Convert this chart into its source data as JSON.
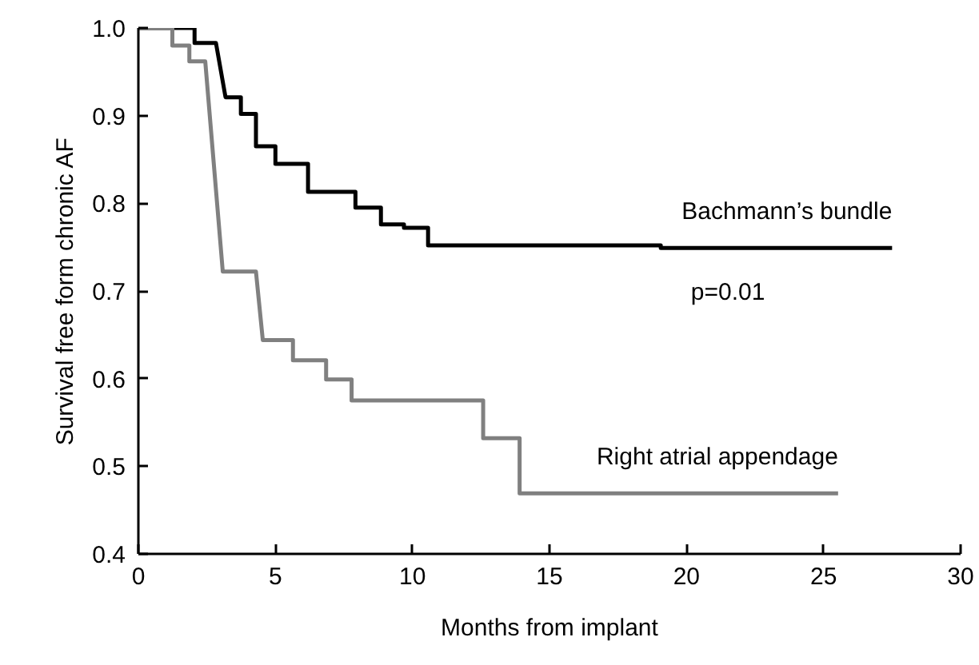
{
  "chart_data": {
    "type": "line",
    "xlabel": "Months from implant",
    "ylabel": "Survival free form chronic AF",
    "xlim": [
      0,
      30
    ],
    "xticks": [
      0,
      5,
      10,
      15,
      20,
      25,
      30
    ],
    "ylim": [
      0.4,
      1.0
    ],
    "yticks": [
      {
        "value": 0.4,
        "label": "0.4"
      },
      0.5,
      0.6,
      0.7,
      0.8,
      0.9,
      {
        "value": 1.0,
        "label": "1.0"
      }
    ],
    "grid": false,
    "legend": false,
    "marker": "none",
    "line_style": "solid",
    "series": [
      {
        "name": "Bachmann’s bundle",
        "color": "#000000",
        "x": [
          0,
          2.05,
          2.05,
          2.83,
          3.18,
          3.74,
          3.74,
          4.29,
          4.29,
          5.0,
          5.0,
          6.19,
          6.19,
          7.92,
          7.92,
          8.85,
          8.85,
          9.69,
          9.69,
          10.57,
          10.57,
          19.06,
          19.06,
          27.5
        ],
        "values": [
          1.0,
          1.0,
          0.983,
          0.983,
          0.921,
          0.921,
          0.902,
          0.902,
          0.865,
          0.865,
          0.845,
          0.845,
          0.813,
          0.813,
          0.795,
          0.795,
          0.776,
          0.776,
          0.772,
          0.772,
          0.752,
          0.752,
          0.749,
          0.749
        ]
      },
      {
        "name": "Right atrial appendage",
        "color": "#808080",
        "x": [
          0,
          1.24,
          1.24,
          1.86,
          1.86,
          2.44,
          3.08,
          4.29,
          4.54,
          5.64,
          5.64,
          6.85,
          6.85,
          7.78,
          7.78,
          12.58,
          12.58,
          13.91,
          13.91,
          25.53
        ],
        "values": [
          1.0,
          1.0,
          0.98,
          0.98,
          0.962,
          0.962,
          0.722,
          0.722,
          0.644,
          0.644,
          0.621,
          0.621,
          0.599,
          0.599,
          0.575,
          0.575,
          0.532,
          0.532,
          0.469,
          0.469
        ]
      }
    ],
    "annotations": [
      "p=0.01"
    ]
  }
}
